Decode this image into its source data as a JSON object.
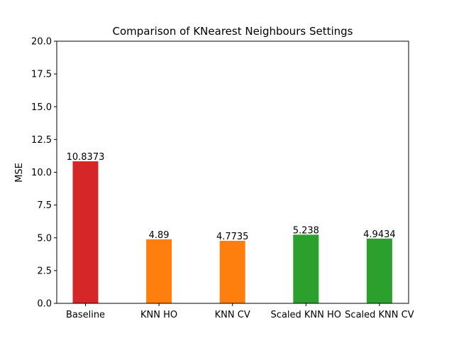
{
  "chart_data": {
    "type": "bar",
    "title": "Comparison of KNearest Neighbours Settings",
    "xlabel": "",
    "ylabel": "MSE",
    "ylim": [
      0,
      20
    ],
    "yticks": [
      "0.0",
      "2.5",
      "5.0",
      "7.5",
      "10.0",
      "12.5",
      "15.0",
      "17.5",
      "20.0"
    ],
    "categories": [
      "Baseline",
      "KNN HO",
      "KNN CV",
      "Scaled KNN HO",
      "Scaled KNN CV"
    ],
    "values": [
      10.8373,
      4.89,
      4.7735,
      5.238,
      4.9434
    ],
    "value_labels": [
      "10.8373",
      "4.89",
      "4.7735",
      "5.238",
      "4.9434"
    ],
    "colors": [
      "#d62728",
      "#ff7f0e",
      "#ff7f0e",
      "#2ca02c",
      "#2ca02c"
    ],
    "grid": false,
    "legend": "none"
  }
}
